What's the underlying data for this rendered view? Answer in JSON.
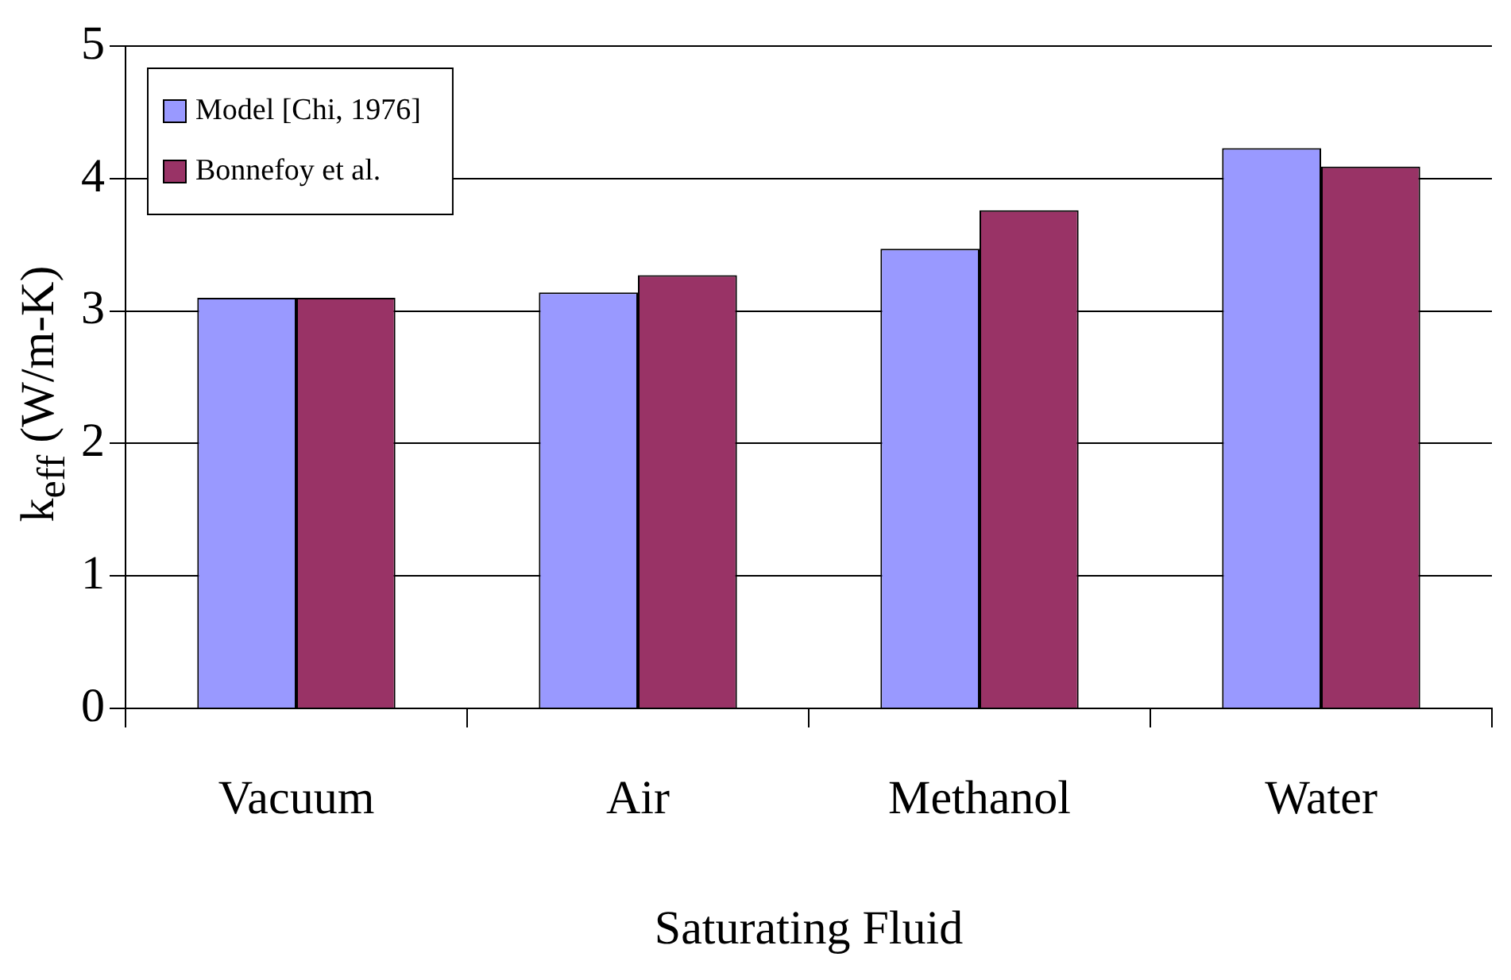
{
  "chart_data": {
    "type": "bar",
    "xlabel": "Saturating Fluid",
    "ylabel": "k$_{eff}$ (W/m-K)",
    "categories": [
      "Vacuum",
      "Air",
      "Methanol",
      "Water"
    ],
    "series": [
      {
        "name": "Model [Chi, 1976]",
        "color": "#9999ff",
        "values": [
          3.1,
          3.14,
          3.47,
          4.23
        ]
      },
      {
        "name": "Bonnefoy et al.",
        "color": "#993366",
        "values": [
          3.1,
          3.27,
          3.76,
          4.09
        ]
      }
    ],
    "ylim": [
      0,
      5
    ],
    "yticks": [
      0,
      1,
      2,
      3,
      4,
      5
    ],
    "grid": "y",
    "legend": "top left"
  }
}
